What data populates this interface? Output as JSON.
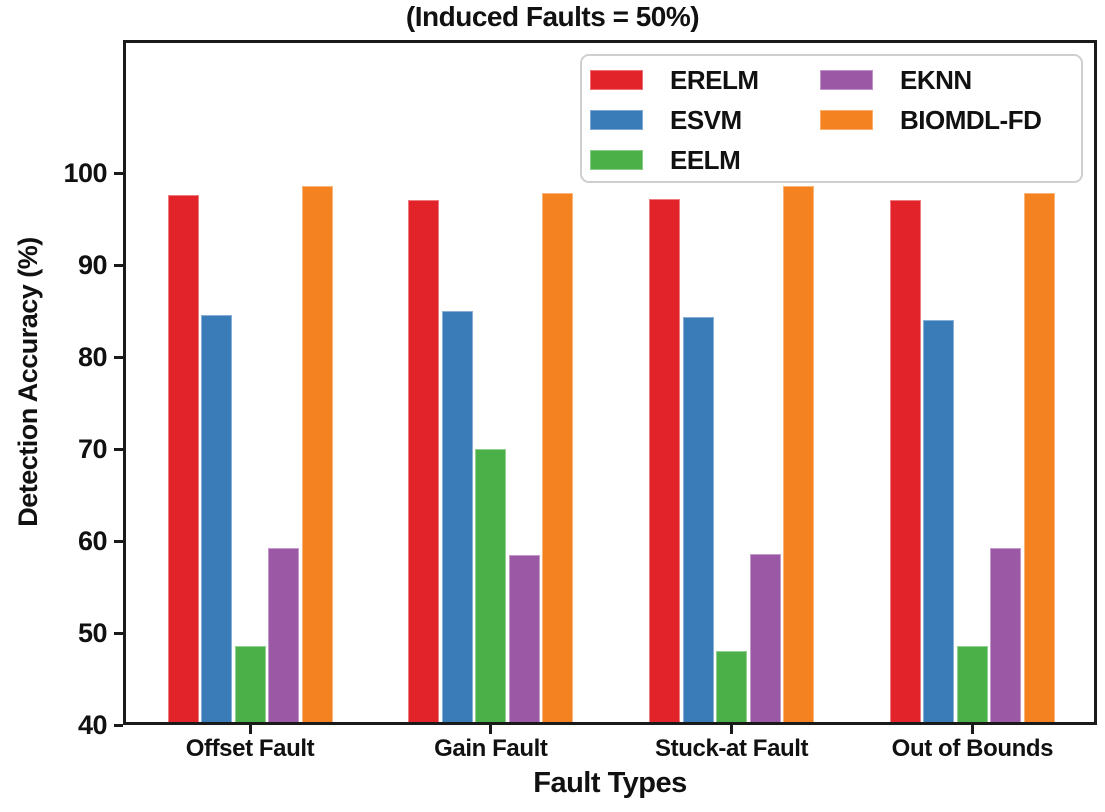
{
  "title": "(Induced Faults = 50%)",
  "chart_data": {
    "type": "bar",
    "title": "(Induced Faults = 50%)",
    "xlabel": "Fault Types",
    "ylabel": "Detection Accuracy (%)",
    "categories": [
      "Offset Fault",
      "Gain Fault",
      "Stuck-at Fault",
      "Out of Bounds"
    ],
    "series": [
      {
        "name": "ERELM",
        "color": "#e2232a",
        "values": [
          97.6,
          97.1,
          97.2,
          97.1
        ]
      },
      {
        "name": "ESVM",
        "color": "#3a7cb8",
        "values": [
          84.6,
          85.0,
          84.4,
          84.1
        ]
      },
      {
        "name": "EELM",
        "color": "#4cb048",
        "values": [
          48.6,
          70.0,
          48.0,
          48.6
        ]
      },
      {
        "name": "EKNN",
        "color": "#9b59a5",
        "values": [
          59.3,
          58.5,
          58.6,
          59.2
        ]
      },
      {
        "name": "BIOMDL-FD",
        "color": "#f58220",
        "values": [
          98.6,
          97.9,
          98.6,
          97.9
        ]
      }
    ],
    "ylim": [
      40,
      114.5
    ],
    "yticks": [
      40,
      50,
      60,
      70,
      80,
      90,
      100
    ],
    "grid": false,
    "legend_position": "upper right",
    "legend_columns": [
      [
        "ERELM",
        "ESVM",
        "EELM"
      ],
      [
        "EKNN",
        "BIOMDL-FD"
      ]
    ],
    "axis_color": "#1a1a1a",
    "text_color": "#111111",
    "legend_border_color": "#cfcfcf"
  }
}
